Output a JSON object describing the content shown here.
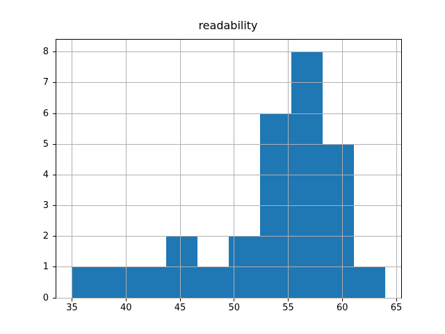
{
  "figure": {
    "background": "#ffffff"
  },
  "chart_data": {
    "type": "bar",
    "subtype": "histogram",
    "title": "readability",
    "xlabel": "",
    "ylabel": "",
    "bin_edges": [
      35,
      37.9,
      40.8,
      43.7,
      46.6,
      49.5,
      52.4,
      55.3,
      58.2,
      61.1,
      64
    ],
    "values": [
      1,
      1,
      1,
      2,
      1,
      2,
      6,
      8,
      5,
      1
    ],
    "xlim": [
      33.55,
      65.45
    ],
    "ylim": [
      0,
      8.4
    ],
    "x_ticks": [
      35,
      40,
      45,
      50,
      55,
      60,
      65
    ],
    "y_ticks": [
      0,
      1,
      2,
      3,
      4,
      5,
      6,
      7,
      8
    ],
    "grid": true,
    "grid_above_bars": true,
    "legend": null,
    "bar_color": "#1f77b4",
    "grid_color": "#b0b0b0",
    "axis_color": "#000000",
    "text_color": "#000000"
  }
}
